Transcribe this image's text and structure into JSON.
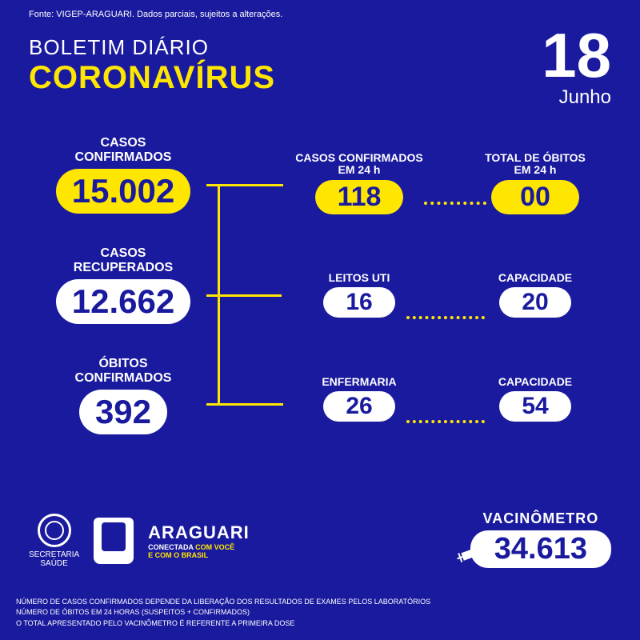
{
  "colors": {
    "background": "#1a1a9e",
    "accent_yellow": "#ffe600",
    "white": "#ffffff",
    "text_on_pill": "#1a1a9e"
  },
  "source": "Fonte: VIGEP-ARAGUARI. Dados parciais, sujeitos a alterações.",
  "header": {
    "line1": "BOLETIM DIÁRIO",
    "line2": "CORONAVÍRUS"
  },
  "date": {
    "day": "18",
    "month": "Junho"
  },
  "left": {
    "confirmed": {
      "label": "CASOS\nCONFIRMADOS",
      "value": "15.002",
      "pill_bg": "#ffe600"
    },
    "recovered": {
      "label": "CASOS\nRECUPERADOS",
      "value": "12.662",
      "pill_bg": "#ffffff"
    },
    "deaths": {
      "label": "ÓBITOS\nCONFIRMADOS",
      "value": "392",
      "pill_bg": "#ffffff"
    }
  },
  "rows": {
    "r1": {
      "a": {
        "label": "CASOS CONFIRMADOS\nEM 24 h",
        "value": "118",
        "pill_bg": "#ffe600"
      },
      "b": {
        "label": "TOTAL DE ÓBITOS\nEM 24 h",
        "value": "00",
        "pill_bg": "#ffe600"
      }
    },
    "r2": {
      "a": {
        "label": "LEITOS UTI",
        "value": "16",
        "pill_bg": "#ffffff"
      },
      "b": {
        "label": "CAPACIDADE",
        "value": "20",
        "pill_bg": "#ffffff"
      }
    },
    "r3": {
      "a": {
        "label": "ENFERMARIA",
        "value": "26",
        "pill_bg": "#ffffff"
      },
      "b": {
        "label": "CAPACIDADE",
        "value": "54",
        "pill_bg": "#ffffff"
      }
    }
  },
  "footer": {
    "secretaria": {
      "line1": "SECRETARIA",
      "line2": "SAÚDE"
    },
    "city": {
      "name": "ARAGUARI",
      "slogan_pre": "CONECTADA ",
      "slogan_mid": "COM VOCÊ",
      "slogan_post": "E COM O BRASIL"
    }
  },
  "vac": {
    "label": "VACINÔMETRO",
    "value": "34.613",
    "pill_bg": "#ffffff"
  },
  "footnotes": {
    "l1": "NÚMERO DE CASOS CONFIRMADOS DEPENDE DA LIBERAÇÃO DOS RESULTADOS DE EXAMES PELOS LABORATÓRIOS",
    "l2": "NÚMERO DE ÓBITOS EM 24 HORAS (SUSPEITOS + CONFIRMADOS)",
    "l3": "O TOTAL APRESENTADO PELO VACINÔMETRO É REFERENTE A PRIMEIRA DOSE"
  }
}
